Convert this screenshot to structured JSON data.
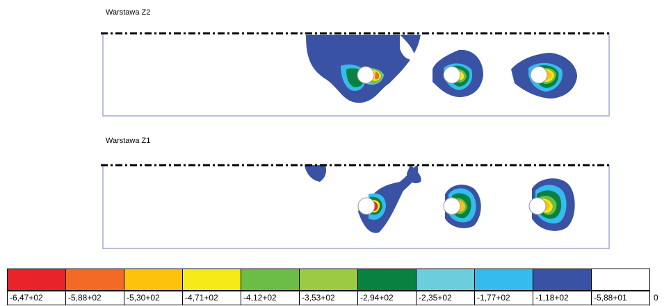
{
  "layers": [
    {
      "label": "Warstawa Z2"
    },
    {
      "label": "Warstawa Z1"
    }
  ],
  "legend": {
    "colors": [
      "#e8242a",
      "#f26a26",
      "#fdc20b",
      "#f4ea18",
      "#6bbd45",
      "#9acb43",
      "#098141",
      "#6ccddd",
      "#36bbef",
      "#3a52a3",
      "#ffffff"
    ],
    "values": [
      "-6,47+02",
      "-5,88+02",
      "-5,30+02",
      "-4,71+02",
      "-4,12+02",
      "-3,53+02",
      "-2,94+02",
      "-2,35+02",
      "-1,77+02",
      "-1,18+02",
      "-5,88+01"
    ],
    "end_label": "0"
  }
}
